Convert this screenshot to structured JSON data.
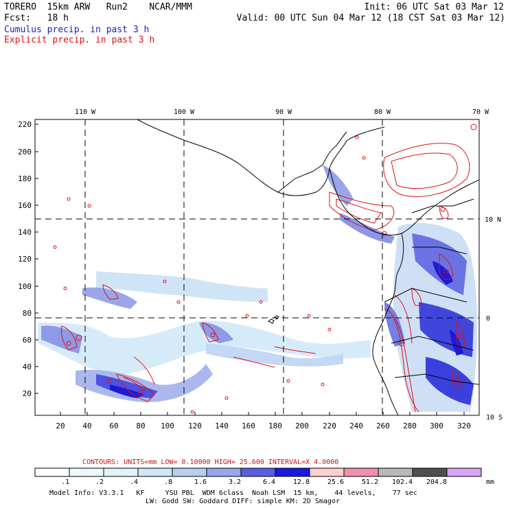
{
  "header": {
    "model": "TORERO  15km ARW   Run2    NCAR/MMM",
    "init": "Init: 06 UTC Sat 03 Mar 12",
    "fcst": "Fcst:   18 h",
    "valid": "Valid: 00 UTC Sun 04 Mar 12 (18 CST Sat 03 Mar 12)",
    "field1": "Cumulus precip. in past 3 h",
    "field2": "Explicit precip. in past 3 h"
  },
  "map": {
    "lon_labels": [
      "110 W",
      "100 W",
      "90 W",
      "80 W",
      "70 W"
    ],
    "lat_labels": [
      "10 N",
      "0",
      "10 S"
    ],
    "y_ticks": [
      "220",
      "200",
      "180",
      "160",
      "140",
      "120",
      "100",
      "80",
      "60",
      "40",
      "20"
    ],
    "x_ticks": [
      "20",
      "40",
      "60",
      "80",
      "100",
      "120",
      "140",
      "160",
      "180",
      "200",
      "220",
      "240",
      "260",
      "280",
      "300",
      "320"
    ]
  },
  "contours": {
    "label": "CONTOURS:  UNITS=mm  LOW= 0.10000     HIGH=  25.600     INTERVAL=X  4.0000"
  },
  "colorbar": {
    "labels": [
      ".1",
      ".2",
      ".4",
      ".8",
      "1.6",
      "3.2",
      "6.4",
      "12.8",
      "25.6",
      "51.2",
      "102.4",
      "204.8"
    ],
    "unit": "mm",
    "colors": [
      "#ffffff",
      "#eef8ff",
      "#e0f4f8",
      "#cfe6f5",
      "#b8cfef",
      "#9aa6ea",
      "#5a5ee6",
      "#1a1ae0",
      "#ffd0d0",
      "#f090b0",
      "#b8b8b8",
      "#505050",
      "#d9a6f5"
    ]
  },
  "model_info": {
    "line1": "Model Info: V3.3.1   KF     YSU PBL  WDM 6class  Noah LSM  15 km,    44 levels,    77 sec",
    "line2": "LW: Godd SW: Goddard DIFF: simple KM: 2D Smagor"
  }
}
